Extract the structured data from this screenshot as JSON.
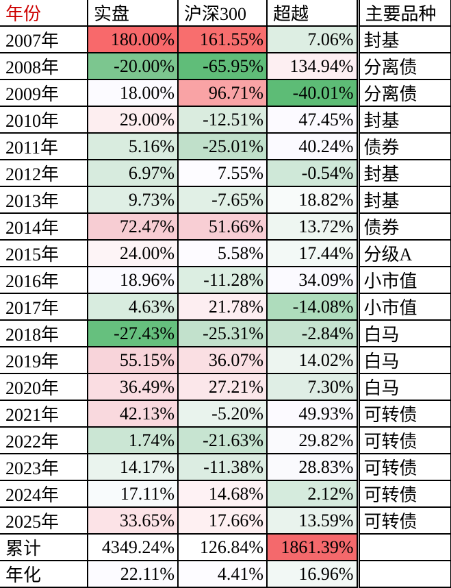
{
  "header": {
    "year": "年份",
    "actual": "实盘",
    "hs300": "沪深300",
    "excess": "超越",
    "variety": "主要品种"
  },
  "colors": {
    "year_header_text": "#cc0000",
    "grid_line": "#000000",
    "heat_max_red": "#f8696b",
    "heat_min_green": "#5dbc76",
    "heat_mid_white": "#ffffff"
  },
  "rows": [
    {
      "year": "2007年",
      "actual": "180.00%",
      "hs300": "161.55%",
      "excess": "7.06%",
      "variety": "封基",
      "colors": [
        "#f8696b",
        "#f86e6e",
        "#ddeee3"
      ]
    },
    {
      "year": "2008年",
      "actual": "-20.00%",
      "hs300": "-65.95%",
      "excess": "134.94%",
      "variety": "分离债",
      "colors": [
        "#7cc68f",
        "#60bd79",
        "#fdeff2"
      ]
    },
    {
      "year": "2009年",
      "actual": "18.00%",
      "hs300": "96.71%",
      "excess": "-40.01%",
      "variety": "分离债",
      "colors": [
        "#fcfbff",
        "#f9a3a5",
        "#5dbc76"
      ]
    },
    {
      "year": "2010年",
      "actual": "29.00%",
      "hs300": "-12.51%",
      "excess": "47.45%",
      "variety": "封基",
      "colors": [
        "#fdeef0",
        "#daecdf",
        "#fcfaff"
      ]
    },
    {
      "year": "2011年",
      "actual": "5.16%",
      "hs300": "-25.01%",
      "excess": "40.24%",
      "variety": "债券",
      "colors": [
        "#d9ecdf",
        "#c0e0ca",
        "#fbfaff"
      ]
    },
    {
      "year": "2012年",
      "actual": "6.97%",
      "hs300": "7.55%",
      "excess": "-0.54%",
      "variety": "封基",
      "colors": [
        "#d7ebde",
        "#fdfcff",
        "#cfe8d8"
      ]
    },
    {
      "year": "2013年",
      "actual": "9.73%",
      "hs300": "-7.65%",
      "excess": "18.82%",
      "variety": "封基",
      "colors": [
        "#dfefe5",
        "#e1f0e6",
        "#f8fbfa"
      ]
    },
    {
      "year": "2014年",
      "actual": "72.47%",
      "hs300": "51.66%",
      "excess": "13.72%",
      "variety": "债券",
      "colors": [
        "#f7cdd3",
        "#f8ced4",
        "#eef6f1"
      ]
    },
    {
      "year": "2015年",
      "actual": "24.00%",
      "hs300": "5.58%",
      "excess": "17.44%",
      "variety": "分级A",
      "colors": [
        "#fdf4f6",
        "#fdfbff",
        "#f3f9f6"
      ]
    },
    {
      "year": "2016年",
      "actual": "18.96%",
      "hs300": "-11.28%",
      "excess": "34.09%",
      "variety": "小市值",
      "colors": [
        "#fbfaff",
        "#dceee2",
        "#fbfaff"
      ]
    },
    {
      "year": "2017年",
      "actual": "4.63%",
      "hs300": "21.78%",
      "excess": "-14.08%",
      "variety": "小市值",
      "colors": [
        "#d8ecdf",
        "#fdeef1",
        "#aedcbc"
      ]
    },
    {
      "year": "2018年",
      "actual": "-27.43%",
      "hs300": "-25.31%",
      "excess": "-2.84%",
      "variety": "白马",
      "colors": [
        "#66c07e",
        "#c2e1cc",
        "#c5e3cf"
      ]
    },
    {
      "year": "2019年",
      "actual": "55.15%",
      "hs300": "36.07%",
      "excess": "14.02%",
      "variety": "白马",
      "colors": [
        "#f8d4da",
        "#fadfe3",
        "#edf5f0"
      ]
    },
    {
      "year": "2020年",
      "actual": "36.49%",
      "hs300": "27.21%",
      "excess": "7.30%",
      "variety": "白马",
      "colors": [
        "#fadde2",
        "#fbe7ea",
        "#dfeee5"
      ]
    },
    {
      "year": "2021年",
      "actual": "42.13%",
      "hs300": "-5.20%",
      "excess": "49.93%",
      "variety": "可转债",
      "colors": [
        "#f9d9de",
        "#e9f3ed",
        "#fcfaff"
      ]
    },
    {
      "year": "2022年",
      "actual": "1.74%",
      "hs300": "-21.63%",
      "excess": "29.82%",
      "variety": "可转债",
      "colors": [
        "#cbe6d4",
        "#c7e4d1",
        "#fafafd"
      ]
    },
    {
      "year": "2023年",
      "actual": "14.17%",
      "hs300": "-11.38%",
      "excess": "28.83%",
      "variety": "可转债",
      "colors": [
        "#eaf4ee",
        "#dcede2",
        "#fafafd"
      ]
    },
    {
      "year": "2024年",
      "actual": "17.11%",
      "hs300": "14.68%",
      "excess": "2.12%",
      "variety": "可转债",
      "colors": [
        "#f8fbfc",
        "#fef2f4",
        "#d5ebdd"
      ]
    },
    {
      "year": "2025年",
      "actual": "33.65%",
      "hs300": "17.66%",
      "excess": "13.59%",
      "variety": "可转债",
      "colors": [
        "#fce3e7",
        "#fef0f2",
        "#e9f3ed"
      ]
    },
    {
      "year": "累计",
      "actual": "4349.24%",
      "hs300": "126.84%",
      "excess": "1861.39%",
      "variety": "",
      "colors": [
        "#ffffff",
        "#ffffff",
        "#f4696c"
      ]
    },
    {
      "year": "年化",
      "actual": "22.11%",
      "hs300": "4.41%",
      "excess": "16.96%",
      "variety": "",
      "colors": [
        "#fcfbff",
        "#fdfcff",
        "#f2f8f5"
      ]
    }
  ]
}
